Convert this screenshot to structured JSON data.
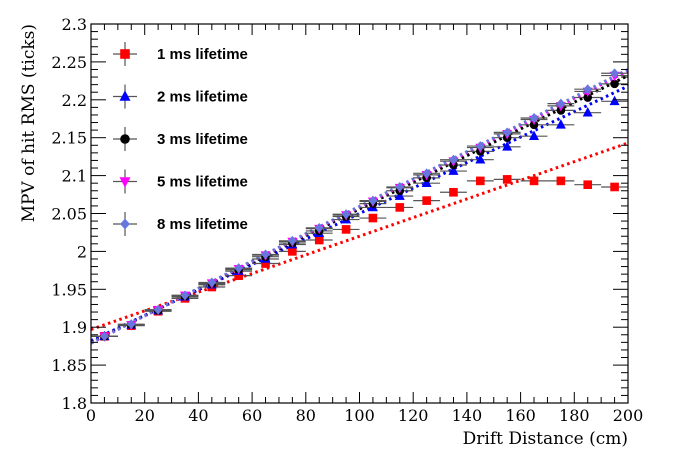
{
  "chart_data": {
    "type": "scatter",
    "xlabel": "Drift Distance (cm)",
    "ylabel": "MPV of hit RMS (ticks)",
    "xlim": [
      0,
      200
    ],
    "ylim": [
      1.8,
      2.3
    ],
    "xticks": [
      "0",
      "20",
      "40",
      "60",
      "80",
      "100",
      "120",
      "140",
      "160",
      "180",
      "200"
    ],
    "yticks": [
      "1.8",
      "1.85",
      "1.9",
      "1.95",
      "2",
      "2.05",
      "2.1",
      "2.15",
      "2.2",
      "2.25",
      "2.3"
    ],
    "x_error": 5,
    "y_error": 0.003,
    "legend_position": "top-left",
    "series": [
      {
        "name": "1 ms lifetime",
        "color": "#ff0000",
        "marker": "square",
        "x": [
          5,
          15,
          25,
          35,
          45,
          55,
          65,
          75,
          85,
          95,
          105,
          115,
          125,
          135,
          145,
          155,
          165,
          175,
          185,
          195
        ],
        "y": [
          1.888,
          1.902,
          1.921,
          1.938,
          1.953,
          1.968,
          1.984,
          2.0,
          2.015,
          2.029,
          2.044,
          2.058,
          2.067,
          2.078,
          2.093,
          2.095,
          2.093,
          2.093,
          2.088,
          2.085
        ],
        "fit": {
          "x": [
            0,
            200
          ],
          "y": [
            1.897,
            2.143
          ],
          "style": "dotted"
        }
      },
      {
        "name": "2 ms lifetime",
        "color": "#0000ff",
        "marker": "triangle",
        "x": [
          5,
          15,
          25,
          35,
          45,
          55,
          65,
          75,
          85,
          95,
          105,
          115,
          125,
          135,
          145,
          155,
          165,
          175,
          185,
          195
        ],
        "y": [
          1.888,
          1.903,
          1.922,
          1.94,
          1.956,
          1.974,
          1.99,
          2.009,
          2.024,
          2.042,
          2.058,
          2.073,
          2.09,
          2.106,
          2.121,
          2.138,
          2.152,
          2.167,
          2.183,
          2.198
        ],
        "fit": {
          "x": [
            0,
            200
          ],
          "y": [
            1.882,
            2.218
          ],
          "style": "dotted"
        }
      },
      {
        "name": "3 ms lifetime",
        "color": "#000000",
        "marker": "circle",
        "x": [
          5,
          15,
          25,
          35,
          45,
          55,
          65,
          75,
          85,
          95,
          105,
          115,
          125,
          135,
          145,
          155,
          165,
          175,
          185,
          195
        ],
        "y": [
          1.888,
          1.903,
          1.922,
          1.941,
          1.957,
          1.976,
          1.993,
          2.011,
          2.027,
          2.046,
          2.063,
          2.08,
          2.097,
          2.114,
          2.132,
          2.15,
          2.167,
          2.186,
          2.203,
          2.221
        ],
        "fit": {
          "x": [
            0,
            200
          ],
          "y": [
            1.88,
            2.232
          ],
          "style": "dotted"
        }
      },
      {
        "name": "5 ms lifetime",
        "color": "#ff00ff",
        "marker": "triangle-down",
        "x": [
          5,
          15,
          25,
          35,
          45,
          55,
          65,
          75,
          85,
          95,
          105,
          115,
          125,
          135,
          145,
          155,
          165,
          175,
          185,
          195
        ],
        "y": [
          1.888,
          1.903,
          1.923,
          1.942,
          1.958,
          1.977,
          1.995,
          2.013,
          2.03,
          2.048,
          2.066,
          2.084,
          2.101,
          2.119,
          2.137,
          2.155,
          2.174,
          2.192,
          2.211,
          2.232
        ],
        "fit": {
          "x": [
            0,
            200
          ],
          "y": [
            1.879,
            2.238
          ],
          "style": "dotted"
        }
      },
      {
        "name": "8 ms lifetime",
        "color": "#6677dd",
        "marker": "diamond",
        "x": [
          5,
          15,
          25,
          35,
          45,
          55,
          65,
          75,
          85,
          95,
          105,
          115,
          125,
          135,
          145,
          155,
          165,
          175,
          185,
          195
        ],
        "y": [
          1.888,
          1.904,
          1.923,
          1.942,
          1.959,
          1.978,
          1.996,
          2.014,
          2.031,
          2.049,
          2.067,
          2.085,
          2.103,
          2.121,
          2.139,
          2.157,
          2.176,
          2.195,
          2.214,
          2.235
        ],
        "fit": {
          "x": [
            0,
            200
          ],
          "y": [
            1.879,
            2.24
          ],
          "style": "dotted"
        }
      }
    ]
  }
}
